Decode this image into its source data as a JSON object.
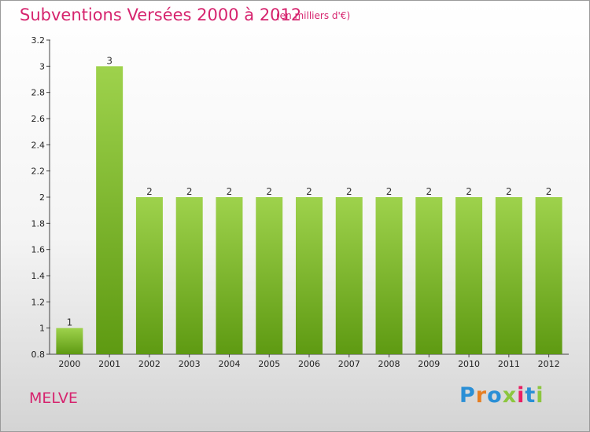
{
  "header": {
    "title": "Subventions Versées 2000 à 2012",
    "unit": "(en milliers d'€)"
  },
  "commune": "MELVE",
  "logo": {
    "text": "Proxiti",
    "letter_colors": [
      "#2a8fd6",
      "#e67e22",
      "#2a8fd6",
      "#8cc63f",
      "#e91e63",
      "#2a8fd6",
      "#8cc63f"
    ]
  },
  "colors": {
    "bar_light": "#9ed24c",
    "bar_dark": "#5e9a12",
    "accent": "#d6246e"
  },
  "chart_data": {
    "type": "bar",
    "categories": [
      "2000",
      "2001",
      "2002",
      "2003",
      "2004",
      "2005",
      "2006",
      "2007",
      "2008",
      "2009",
      "2010",
      "2011",
      "2012"
    ],
    "values": [
      1,
      3,
      2,
      2,
      2,
      2,
      2,
      2,
      2,
      2,
      2,
      2,
      2
    ],
    "value_labels": [
      "1",
      "3",
      "2",
      "2",
      "2",
      "2",
      "2",
      "2",
      "2",
      "2",
      "2",
      "2",
      "2"
    ],
    "ylim": [
      0.8,
      3.2
    ],
    "y_ticks": [
      "0.8",
      "1",
      "1.2",
      "1.4",
      "1.6",
      "1.8",
      "2",
      "2.2",
      "2.4",
      "2.6",
      "2.8",
      "3",
      "3.2"
    ],
    "grid": false,
    "xlabel": "",
    "ylabel": ""
  }
}
